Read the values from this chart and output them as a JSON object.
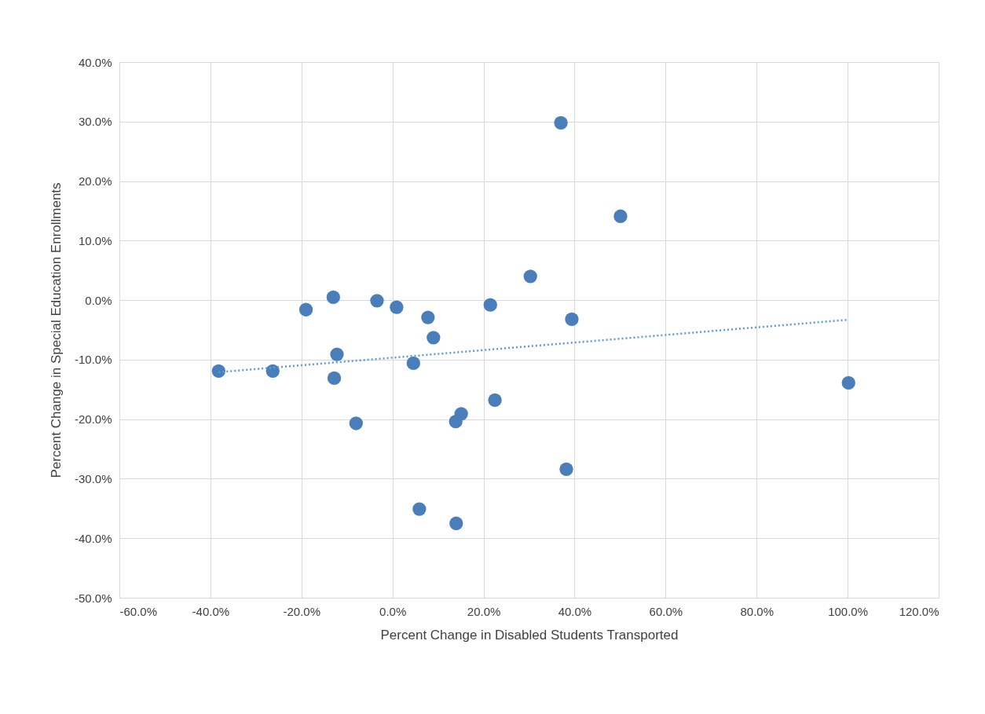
{
  "chart_data": {
    "type": "scatter",
    "xlabel": "Percent Change in Disabled Students Transported",
    "ylabel": "Percent Change in Special Education Enrollments",
    "xlim": [
      -60,
      120
    ],
    "ylim": [
      -50,
      40
    ],
    "grid": true,
    "marker": "circle",
    "xticks": [
      {
        "value": -60,
        "label": "-60.0%"
      },
      {
        "value": -40,
        "label": "-40.0%"
      },
      {
        "value": -20,
        "label": "-20.0%"
      },
      {
        "value": 0,
        "label": "0.0%"
      },
      {
        "value": 20,
        "label": "20.0%"
      },
      {
        "value": 40,
        "label": "40.0%"
      },
      {
        "value": 60,
        "label": "60.0%"
      },
      {
        "value": 80,
        "label": "80.0%"
      },
      {
        "value": 100,
        "label": "100.0%"
      },
      {
        "value": 120,
        "label": "120.0%"
      }
    ],
    "yticks": [
      {
        "value": 40,
        "label": "40.0%"
      },
      {
        "value": 30,
        "label": "30.0%"
      },
      {
        "value": 20,
        "label": "20.0%"
      },
      {
        "value": 10,
        "label": "10.0%"
      },
      {
        "value": 0,
        "label": "0.0%"
      },
      {
        "value": -10,
        "label": "-10.0%"
      },
      {
        "value": -20,
        "label": "-20.0%"
      },
      {
        "value": -30,
        "label": "-30.0%"
      },
      {
        "value": -40,
        "label": "-40.0%"
      },
      {
        "value": -50,
        "label": "-50.0%"
      }
    ],
    "series": [
      {
        "type": "scatter",
        "color": "#4a7ebb",
        "x": [
          37.0,
          50.1,
          30.3,
          -13.0,
          -3.4,
          0.9,
          -19.0,
          21.5,
          7.8,
          39.4,
          9.0,
          -12.2,
          4.6,
          -38.2,
          -26.3,
          -12.8,
          100.2,
          22.5,
          15.1,
          13.9,
          -8.0,
          38.2,
          5.9,
          14.0
        ],
        "values": [
          29.8,
          14.1,
          4.0,
          0.5,
          -0.1,
          -1.2,
          -1.6,
          -0.8,
          -2.9,
          -3.2,
          -6.3,
          -9.1,
          -10.6,
          -11.9,
          -11.9,
          -13.1,
          -13.9,
          -16.8,
          -19.1,
          -20.4,
          -20.7,
          -28.4,
          -35.1,
          -37.5
        ]
      },
      {
        "type": "line",
        "color": "#5b9bd5",
        "line_style": "dotted",
        "marker": "none",
        "x": [
          -38.2,
          100.0
        ],
        "values": [
          -12.1,
          -3.3
        ]
      }
    ]
  }
}
